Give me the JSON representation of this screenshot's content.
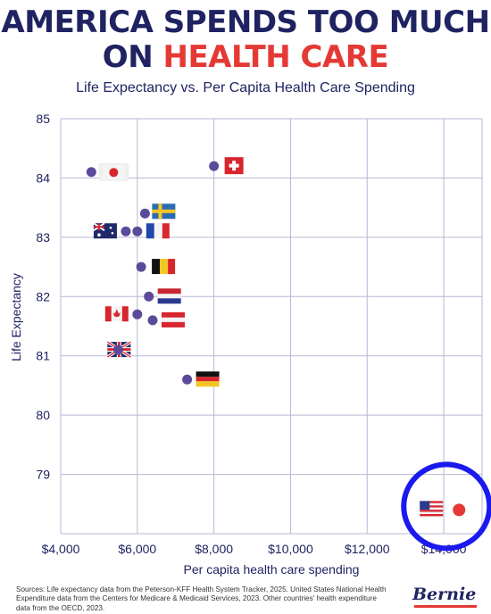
{
  "headline": {
    "line1": "AMERICA SPENDS TOO MUCH",
    "line2_prefix": "ON ",
    "line2_highlight": "HEALTH CARE"
  },
  "subtitle": "Life Expectancy vs. Per Capita Health Care Spending",
  "sources": "Sources: Life expectancy data from the Peterson-KFF Health System Tracker, 2025. United States National Health Expenditure data from the Centers for Medicare & Medicaid Services, 2023. Other countries' health expenditure data from the OECD, 2023.",
  "logo_text": "Bernie",
  "colors": {
    "navy": "#1f2361",
    "red": "#e53935",
    "point": "#5b4a9a",
    "grid": "#b9b6d6",
    "highlight_ring": "#1a1aee"
  },
  "chart_data": {
    "type": "scatter",
    "xlabel": "Per capita health care spending",
    "ylabel": "Life Expectancy",
    "xlim": [
      4000,
      15000
    ],
    "ylim": [
      78.0,
      85.0
    ],
    "x_ticks": [
      4000,
      6000,
      8000,
      10000,
      12000,
      14000
    ],
    "x_tick_labels": [
      "$4,000",
      "$6,000",
      "$8,000",
      "$10,000",
      "$12,000",
      "$14,000"
    ],
    "y_ticks": [
      79,
      80,
      81,
      82,
      83,
      84,
      85
    ],
    "y_tick_labels": [
      "79",
      "80",
      "81",
      "82",
      "83",
      "84",
      "85"
    ],
    "grid": true,
    "points": [
      {
        "x": 4800,
        "y": 84.1,
        "icon": "japan-flag-icon"
      },
      {
        "x": 8000,
        "y": 84.2,
        "icon": "switzerland-flag-icon"
      },
      {
        "x": 6200,
        "y": 83.4,
        "icon": "sweden-flag-icon"
      },
      {
        "x": 5700,
        "y": 83.1,
        "icon": "australia-flag-icon"
      },
      {
        "x": 6000,
        "y": 83.1,
        "icon": "france-flag-icon"
      },
      {
        "x": 6100,
        "y": 82.5,
        "icon": "belgium-flag-icon"
      },
      {
        "x": 6300,
        "y": 82.0,
        "icon": "netherlands-flag-icon"
      },
      {
        "x": 6000,
        "y": 81.7,
        "icon": "canada-flag-icon"
      },
      {
        "x": 6400,
        "y": 81.6,
        "icon": "austria-flag-icon"
      },
      {
        "x": 5500,
        "y": 81.1,
        "icon": "uk-flag-icon"
      },
      {
        "x": 7300,
        "y": 80.6,
        "icon": "germany-flag-icon"
      },
      {
        "x": 14400,
        "y": 78.4,
        "icon": "usa-flag-icon",
        "highlight": true
      }
    ]
  }
}
